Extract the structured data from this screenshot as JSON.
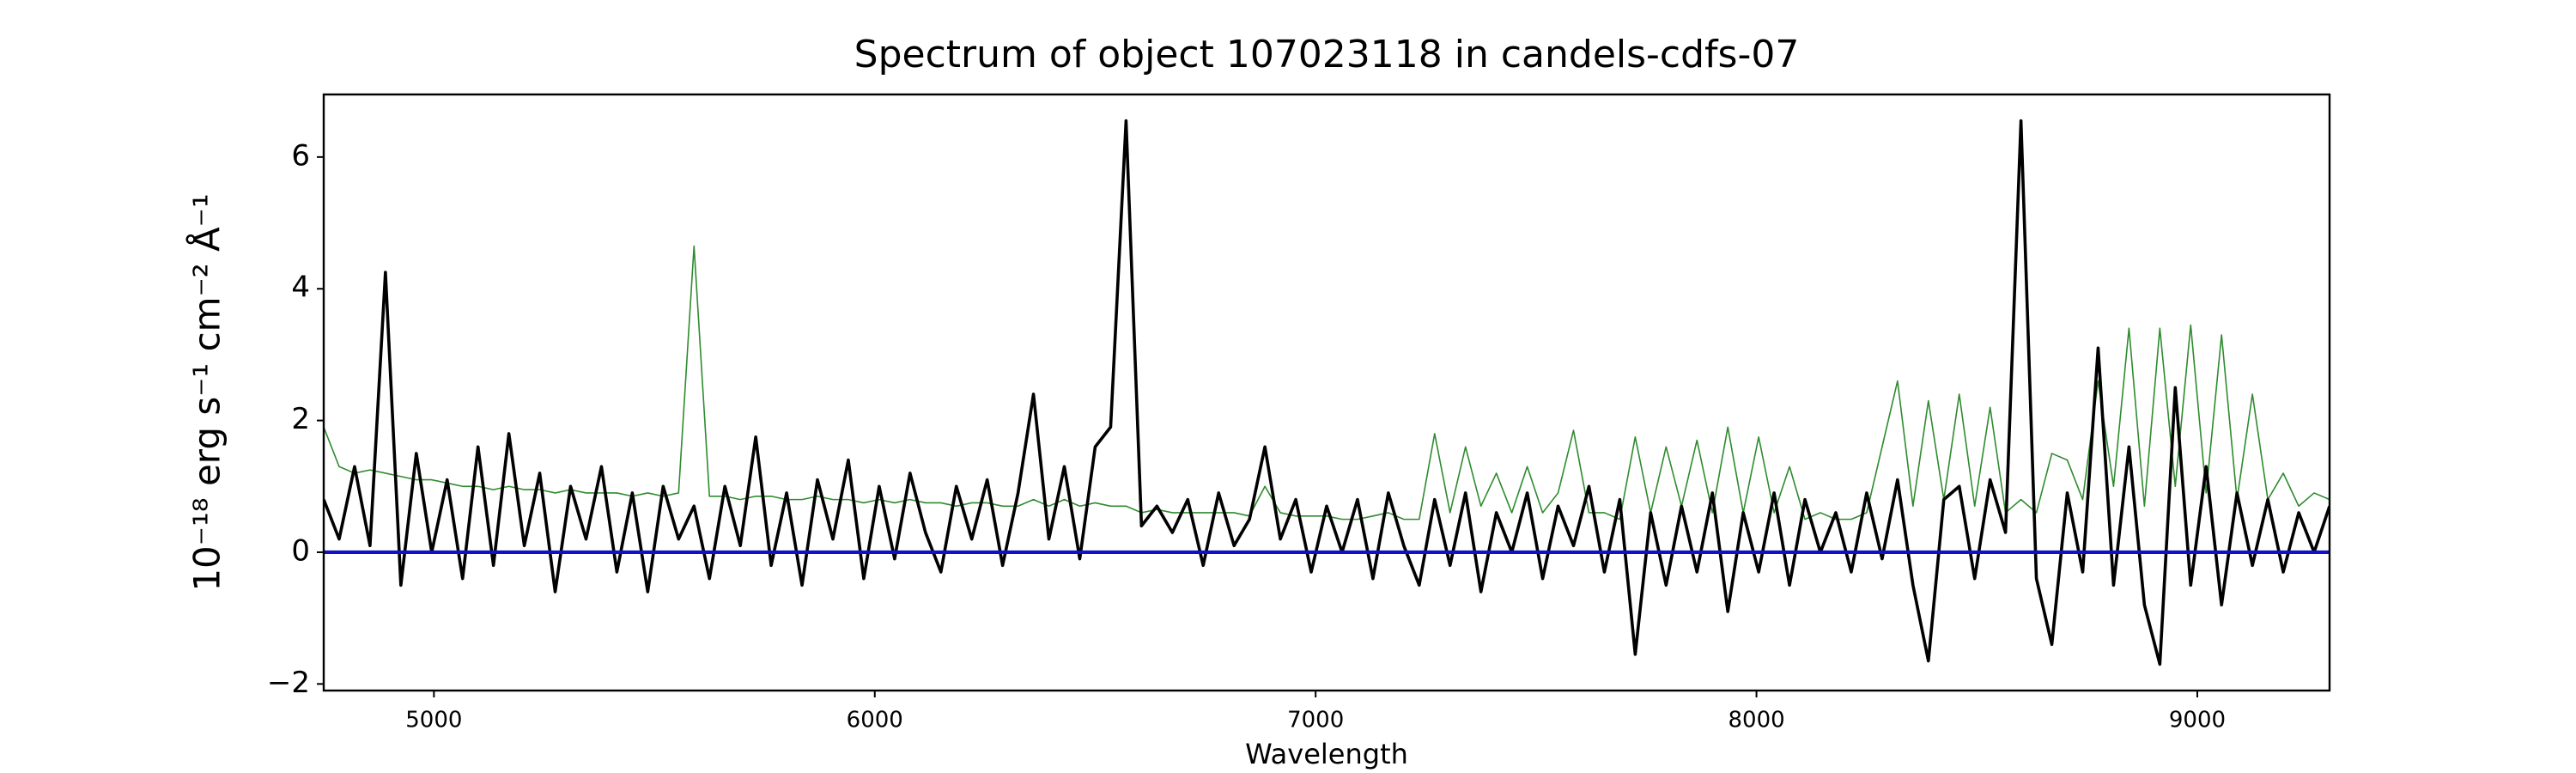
{
  "chart_data": {
    "type": "line",
    "title": "Spectrum of object 107023118 in candels-cdfs-07",
    "x_label": "Wavelength",
    "y_label": "10⁻¹⁸ erg s⁻¹ cm⁻² Å⁻¹",
    "xlim": [
      4750,
      9300
    ],
    "ylim": [
      -2.1,
      6.95
    ],
    "xticks": [
      5000,
      6000,
      7000,
      8000,
      9000
    ],
    "yticks": [
      {
        "value": -2,
        "label": "−2"
      },
      0,
      2,
      4,
      6
    ],
    "x": [
      4750,
      4785,
      4820,
      4855,
      4890,
      4925,
      4960,
      4995,
      5030,
      5065,
      5100,
      5135,
      5170,
      5205,
      5240,
      5275,
      5310,
      5345,
      5380,
      5415,
      5450,
      5485,
      5520,
      5555,
      5590,
      5625,
      5660,
      5695,
      5730,
      5765,
      5800,
      5835,
      5870,
      5905,
      5940,
      5975,
      6010,
      6045,
      6080,
      6115,
      6150,
      6185,
      6220,
      6255,
      6290,
      6325,
      6360,
      6395,
      6430,
      6465,
      6500,
      6535,
      6570,
      6605,
      6640,
      6675,
      6710,
      6745,
      6780,
      6815,
      6850,
      6885,
      6920,
      6955,
      6990,
      7025,
      7060,
      7095,
      7130,
      7165,
      7200,
      7235,
      7270,
      7305,
      7340,
      7375,
      7410,
      7445,
      7480,
      7515,
      7550,
      7585,
      7620,
      7655,
      7690,
      7725,
      7760,
      7795,
      7830,
      7865,
      7900,
      7935,
      7970,
      8005,
      8040,
      8075,
      8110,
      8145,
      8180,
      8215,
      8250,
      8285,
      8320,
      8355,
      8390,
      8425,
      8460,
      8495,
      8530,
      8565,
      8600,
      8635,
      8670,
      8705,
      8740,
      8775,
      8810,
      8845,
      8880,
      8915,
      8950,
      8985,
      9020,
      9055,
      9090,
      9125,
      9160,
      9195,
      9230,
      9265,
      9300
    ],
    "series": [
      {
        "color": "#2e8b2e",
        "width": 1.6,
        "values": [
          1.9,
          1.3,
          1.2,
          1.25,
          1.2,
          1.15,
          1.1,
          1.1,
          1.05,
          1.0,
          1.0,
          0.95,
          1.0,
          0.95,
          0.95,
          0.9,
          0.95,
          0.9,
          0.9,
          0.9,
          0.85,
          0.9,
          0.85,
          0.9,
          4.65,
          0.85,
          0.85,
          0.8,
          0.85,
          0.85,
          0.8,
          0.8,
          0.85,
          0.8,
          0.8,
          0.75,
          0.8,
          0.75,
          0.8,
          0.75,
          0.75,
          0.7,
          0.75,
          0.75,
          0.7,
          0.7,
          0.8,
          0.7,
          0.8,
          0.7,
          0.75,
          0.7,
          0.7,
          0.6,
          0.65,
          0.6,
          0.6,
          0.6,
          0.6,
          0.6,
          0.55,
          1.0,
          0.6,
          0.55,
          0.55,
          0.55,
          0.5,
          0.5,
          0.55,
          0.6,
          0.5,
          0.5,
          1.8,
          0.6,
          1.6,
          0.7,
          1.2,
          0.6,
          1.3,
          0.6,
          0.9,
          1.85,
          0.6,
          0.6,
          0.5,
          1.75,
          0.6,
          1.6,
          0.7,
          1.7,
          0.6,
          1.9,
          0.6,
          1.75,
          0.6,
          1.3,
          0.5,
          0.6,
          0.5,
          0.5,
          0.6,
          1.6,
          2.6,
          0.7,
          2.3,
          0.8,
          2.4,
          0.7,
          2.2,
          0.6,
          0.8,
          0.6,
          1.5,
          1.4,
          0.8,
          2.6,
          1.0,
          3.4,
          0.7,
          3.4,
          1.0,
          3.45,
          0.9,
          3.3,
          0.8,
          2.4,
          0.8,
          1.2,
          0.7,
          0.9,
          0.8
        ]
      },
      {
        "color": "#000000",
        "width": 3.6,
        "values": [
          0.8,
          0.2,
          1.3,
          0.1,
          4.25,
          -0.5,
          1.5,
          0.0,
          1.1,
          -0.4,
          1.6,
          -0.2,
          1.8,
          0.1,
          1.2,
          -0.6,
          1.0,
          0.2,
          1.3,
          -0.3,
          0.9,
          -0.6,
          1.0,
          0.2,
          0.7,
          -0.4,
          1.0,
          0.1,
          1.75,
          -0.2,
          0.9,
          -0.5,
          1.1,
          0.2,
          1.4,
          -0.4,
          1.0,
          -0.1,
          1.2,
          0.3,
          -0.3,
          1.0,
          0.2,
          1.1,
          -0.2,
          0.9,
          2.4,
          0.2,
          1.3,
          -0.1,
          1.6,
          1.9,
          6.55,
          0.4,
          0.7,
          0.3,
          0.8,
          -0.2,
          0.9,
          0.1,
          0.5,
          1.6,
          0.2,
          0.8,
          -0.3,
          0.7,
          0.0,
          0.8,
          -0.4,
          0.9,
          0.1,
          -0.5,
          0.8,
          -0.2,
          0.9,
          -0.6,
          0.6,
          0.0,
          0.9,
          -0.4,
          0.7,
          0.1,
          1.0,
          -0.3,
          0.8,
          -1.55,
          0.6,
          -0.5,
          0.7,
          -0.3,
          0.9,
          -0.9,
          0.6,
          -0.3,
          0.9,
          -0.5,
          0.8,
          0.0,
          0.6,
          -0.3,
          0.9,
          -0.1,
          1.1,
          -0.5,
          -1.65,
          0.8,
          1.0,
          -0.4,
          1.1,
          0.3,
          6.55,
          -0.4,
          -1.4,
          0.9,
          -0.3,
          3.1,
          -0.5,
          1.6,
          -0.8,
          -1.7,
          2.5,
          -0.5,
          1.3,
          -0.8,
          0.9,
          -0.2,
          0.8,
          -0.3,
          0.6,
          0.0,
          0.7
        ]
      }
    ],
    "hlines": [
      {
        "value": 0,
        "color": "#1010c8",
        "width": 4.2
      }
    ]
  }
}
